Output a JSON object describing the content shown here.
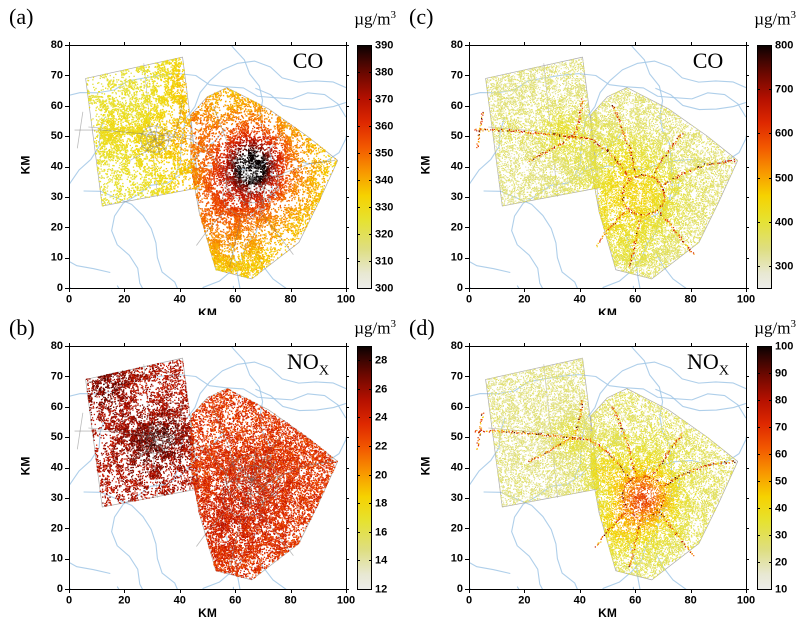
{
  "chart_data": {
    "type": "scatter",
    "axes": {
      "x_label": "KM",
      "y_label": "KM",
      "x_ticks": [
        0,
        20,
        40,
        60,
        80,
        100
      ],
      "y_ticks": [
        0,
        10,
        20,
        30,
        40,
        50,
        60,
        70,
        80
      ],
      "x_range": [
        0,
        100
      ],
      "y_range": [
        0,
        80
      ]
    },
    "colormap": [
      [
        0.0,
        "#ecece9"
      ],
      [
        0.06,
        "#e8e8d2"
      ],
      [
        0.16,
        "#dede82"
      ],
      [
        0.28,
        "#e6e230"
      ],
      [
        0.38,
        "#f6d200"
      ],
      [
        0.48,
        "#f89600"
      ],
      [
        0.58,
        "#f25800"
      ],
      [
        0.68,
        "#de2800"
      ],
      [
        0.78,
        "#b41000"
      ],
      [
        0.88,
        "#6e0800"
      ],
      [
        0.96,
        "#2d0402"
      ],
      [
        1.0,
        "#080101"
      ]
    ],
    "background_road_color": "#a1c7e6",
    "map_geometry": {
      "west_region": [
        [
          6,
          69
        ],
        [
          41,
          76
        ],
        [
          47,
          33
        ],
        [
          12,
          27
        ]
      ],
      "east_region": [
        [
          44,
          57
        ],
        [
          50,
          63
        ],
        [
          57,
          66
        ],
        [
          72,
          59
        ],
        [
          86,
          50
        ],
        [
          97,
          42
        ],
        [
          90,
          28
        ],
        [
          83,
          15
        ],
        [
          66,
          3
        ],
        [
          53,
          6
        ],
        [
          47,
          25
        ],
        [
          44,
          40
        ]
      ],
      "west_dividers": [
        [
          [
            27,
            74
          ],
          [
            32,
            30
          ]
        ],
        [
          [
            7,
            53
          ],
          [
            46,
            50
          ]
        ]
      ],
      "east_dividers": [
        [
          [
            44,
            57
          ],
          [
            47,
            25
          ]
        ]
      ],
      "roads": [
        [
          [
            3,
            46
          ],
          [
            4,
            52
          ],
          [
            5,
            58
          ]
        ],
        [
          [
            2,
            52
          ],
          [
            12,
            52
          ],
          [
            24,
            51
          ],
          [
            36,
            50
          ],
          [
            44,
            49
          ]
        ],
        [
          [
            44,
            49
          ],
          [
            50,
            45
          ],
          [
            55,
            40
          ],
          [
            58,
            36
          ]
        ],
        [
          [
            22,
            42
          ],
          [
            28,
            45
          ],
          [
            34,
            48
          ],
          [
            38,
            50
          ]
        ],
        [
          [
            38,
            50
          ],
          [
            40,
            56
          ],
          [
            41,
            62
          ]
        ],
        [
          [
            70,
            34
          ],
          [
            78,
            38
          ],
          [
            87,
            41
          ],
          [
            96,
            42
          ]
        ],
        [
          [
            69,
            25
          ],
          [
            76,
            17
          ],
          [
            81,
            11
          ]
        ],
        [
          [
            62,
            23
          ],
          [
            60,
            15
          ],
          [
            58,
            7
          ]
        ],
        [
          [
            56,
            25
          ],
          [
            50,
            19
          ],
          [
            46,
            14
          ]
        ],
        [
          [
            60,
            38
          ],
          [
            58,
            46
          ],
          [
            55,
            53
          ],
          [
            52,
            60
          ]
        ],
        [
          [
            67,
            38
          ],
          [
            72,
            45
          ],
          [
            77,
            51
          ]
        ]
      ],
      "ring_road": {
        "cx": 63,
        "cy": 30.5,
        "rx": 7.5,
        "ry": 6.5
      },
      "city_webs": [
        {
          "x": 31,
          "y": 49,
          "r": 6,
          "spokes": 9
        },
        {
          "x": 66,
          "y": 36,
          "r": 11,
          "spokes": 12
        }
      ]
    },
    "panels": [
      {
        "panel_label": "(a)",
        "pollutant": "CO",
        "pollutant_sub": "",
        "unit": "µg/m",
        "unit_sup": "3",
        "row": "top",
        "col": "left",
        "colorbar": {
          "min": 300,
          "max": 390,
          "ticks": [
            300,
            310,
            320,
            330,
            340,
            350,
            360,
            370,
            380,
            390
          ]
        },
        "field": {
          "west_base": 324,
          "east_base": 331,
          "noise": 5,
          "hotspots": [
            {
              "x": 64,
              "y": 38,
              "amp": 20,
              "sig": 18
            },
            {
              "x": 66,
              "y": 40,
              "amp": 34,
              "sig": 8
            },
            {
              "x": 66,
              "y": 40,
              "amp": 30,
              "sig": 3.5
            },
            {
              "x": 52,
              "y": 24,
              "amp": 8,
              "sig": 9
            },
            {
              "x": 30,
              "y": 48,
              "amp": 6,
              "sig": 7
            },
            {
              "x": 15,
              "y": 52,
              "amp": 5,
              "sig": 5
            },
            {
              "x": 42,
              "y": 68,
              "amp": 9,
              "sig": 7
            },
            {
              "x": 44,
              "y": 52,
              "amp": 8,
              "sig": 6
            }
          ],
          "dense": [
            {
              "x": 66,
              "y": 39,
              "sig": 10,
              "b": 0.9
            },
            {
              "x": 52,
              "y": 24,
              "sig": 9,
              "b": 0.7
            },
            {
              "x": 30,
              "y": 49,
              "sig": 8,
              "b": 0.6
            },
            {
              "x": 15,
              "y": 53,
              "sig": 5,
              "b": 0.5
            },
            {
              "x": 58,
              "y": 12,
              "sig": 7,
              "b": 0.5
            },
            {
              "x": 42,
              "y": 66,
              "sig": 7,
              "b": 0.5
            }
          ]
        },
        "style": {
          "dot": 1.35,
          "seed": 11,
          "patch": 2.6,
          "west": {
            "n": 5200,
            "pmin": 0.1,
            "pexp": 1.9,
            "dbase": 0.42
          },
          "east": {
            "n": 9500,
            "pmin": 0.1,
            "pexp": 1.9,
            "dbase": 0.42
          }
        },
        "roads": "gray"
      },
      {
        "panel_label": "(c)",
        "pollutant": "CO",
        "pollutant_sub": "",
        "unit": "µg/m",
        "unit_sup": "3",
        "row": "top",
        "col": "right",
        "colorbar": {
          "min": 250,
          "max": 800,
          "ticks": [
            300,
            400,
            500,
            600,
            700,
            800
          ]
        },
        "field": {
          "west_base": 345,
          "east_base": 352,
          "noise": 30,
          "hotspots": [
            {
              "x": 63,
              "y": 30,
              "amp": 75,
              "sig": 10
            },
            {
              "x": 48,
              "y": 26,
              "amp": 50,
              "sig": 9
            },
            {
              "x": 55,
              "y": 43,
              "amp": 40,
              "sig": 6
            },
            {
              "x": 37,
              "y": 50,
              "amp": 45,
              "sig": 6
            },
            {
              "x": 30,
              "y": 52,
              "amp": 28,
              "sig": 5
            },
            {
              "x": 44,
              "y": 14,
              "amp": 30,
              "sig": 6
            },
            {
              "x": 60,
              "y": 12,
              "amp": 25,
              "sig": 5
            },
            {
              "x": 16,
              "y": 52,
              "amp": 20,
              "sig": 5
            }
          ],
          "dense": [
            {
              "x": 63,
              "y": 30,
              "sig": 11,
              "b": 0.8
            },
            {
              "x": 48,
              "y": 26,
              "sig": 9,
              "b": 0.6
            },
            {
              "x": 37,
              "y": 50,
              "sig": 7,
              "b": 0.6
            },
            {
              "x": 55,
              "y": 43,
              "sig": 6,
              "b": 0.5
            },
            {
              "x": 44,
              "y": 14,
              "sig": 6,
              "b": 0.5
            },
            {
              "x": 60,
              "y": 12,
              "sig": 5,
              "b": 0.4
            }
          ]
        },
        "style": {
          "dot": 1.05,
          "seed": 23,
          "patch": 2.0,
          "west": {
            "n": 8000,
            "pmin": 0.22,
            "pexp": 1.15,
            "dbase": 0.5
          },
          "east": {
            "n": 14000,
            "pmin": 0.22,
            "pexp": 1.15,
            "dbase": 0.5
          }
        },
        "roads": "hot",
        "road_field": {
          "value": 520,
          "spread": 140,
          "dot": 1.2
        }
      },
      {
        "panel_label": "(b)",
        "pollutant": "NO",
        "pollutant_sub": "X",
        "unit": "µg/m",
        "unit_sup": "3",
        "row": "bottom",
        "col": "left",
        "colorbar": {
          "min": 12,
          "max": 29,
          "ticks": [
            12,
            14,
            16,
            18,
            20,
            22,
            24,
            26,
            28
          ]
        },
        "field": {
          "west_base": 25.2,
          "east_base": 23.2,
          "noise": 1.5,
          "hotspots": [
            {
              "x": 28,
              "y": 47,
              "amp": 1.4,
              "sig": 7
            },
            {
              "x": 36,
              "y": 51,
              "amp": 1.3,
              "sig": 5
            },
            {
              "x": 14,
              "y": 66,
              "amp": 1.5,
              "sig": 6
            },
            {
              "x": 63,
              "y": 30,
              "amp": 0.9,
              "sig": 9
            },
            {
              "x": 55,
              "y": 20,
              "amp": 0.6,
              "sig": 7
            }
          ],
          "dense": [
            {
              "x": 28,
              "y": 47,
              "sig": 7,
              "b": 1.1
            },
            {
              "x": 36,
              "y": 51,
              "sig": 5,
              "b": 1.0
            },
            {
              "x": 16,
              "y": 67,
              "sig": 6,
              "b": 0.8
            },
            {
              "x": 63,
              "y": 30,
              "sig": 10,
              "b": 0.7
            },
            {
              "x": 55,
              "y": 20,
              "sig": 8,
              "b": 0.5
            },
            {
              "x": 75,
              "y": 40,
              "sig": 10,
              "b": 0.5
            }
          ]
        },
        "style": {
          "dot": 1.3,
          "seed": 37,
          "patch": 2.3,
          "west": {
            "n": 6200,
            "pmin": 0.1,
            "pexp": 1.7,
            "dbase": 0.4
          },
          "east": {
            "n": 12500,
            "pmin": 0.22,
            "pexp": 1.2,
            "dbase": 0.55
          }
        },
        "roads": "gray"
      },
      {
        "panel_label": "(d)",
        "pollutant": "NO",
        "pollutant_sub": "X",
        "unit": "µg/m",
        "unit_sup": "3",
        "row": "bottom",
        "col": "right",
        "colorbar": {
          "min": 10,
          "max": 100,
          "ticks": [
            10,
            20,
            30,
            40,
            50,
            60,
            70,
            80,
            90,
            100
          ]
        },
        "field": {
          "west_base": 25,
          "east_base": 28,
          "noise": 6,
          "hotspots": [
            {
              "x": 63,
              "y": 30,
              "amp": 25,
              "sig": 6
            },
            {
              "x": 63,
              "y": 30,
              "amp": 12,
              "sig": 12
            },
            {
              "x": 48,
              "y": 40,
              "amp": 8,
              "sig": 5
            },
            {
              "x": 37,
              "y": 50,
              "amp": 9,
              "sig": 4
            },
            {
              "x": 55,
              "y": 20,
              "amp": 8,
              "sig": 6
            },
            {
              "x": 4,
              "y": 52,
              "amp": 12,
              "sig": 3
            },
            {
              "x": 44,
              "y": 14,
              "amp": 6,
              "sig": 5
            }
          ],
          "dense": [
            {
              "x": 63,
              "y": 30,
              "sig": 11,
              "b": 0.8
            },
            {
              "x": 48,
              "y": 26,
              "sig": 9,
              "b": 0.5
            },
            {
              "x": 37,
              "y": 50,
              "sig": 7,
              "b": 0.6
            },
            {
              "x": 55,
              "y": 43,
              "sig": 6,
              "b": 0.5
            },
            {
              "x": 44,
              "y": 14,
              "sig": 6,
              "b": 0.4
            }
          ]
        },
        "style": {
          "dot": 1.05,
          "seed": 53,
          "patch": 2.0,
          "west": {
            "n": 8000,
            "pmin": 0.22,
            "pexp": 1.15,
            "dbase": 0.5
          },
          "east": {
            "n": 14000,
            "pmin": 0.22,
            "pexp": 1.15,
            "dbase": 0.5
          }
        },
        "roads": "hot",
        "road_field": {
          "value": 54,
          "spread": 20,
          "dot": 1.2
        }
      }
    ]
  }
}
